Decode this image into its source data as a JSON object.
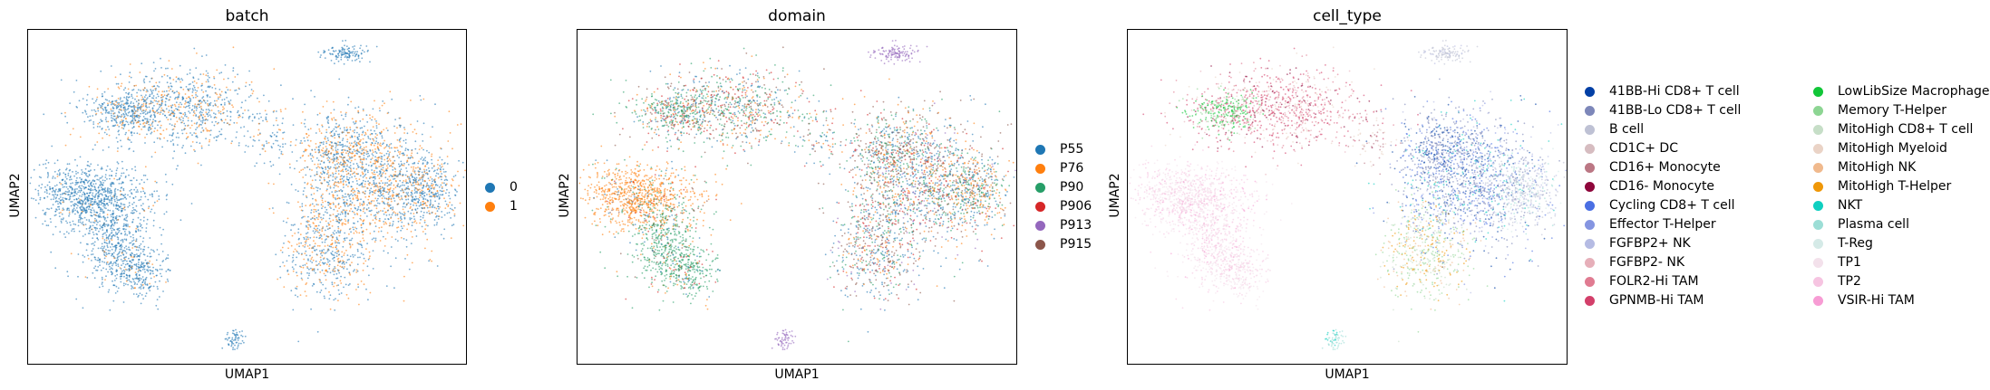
{
  "chart_data": [
    {
      "type": "scatter",
      "title": "batch",
      "xlabel": "UMAP1",
      "ylabel": "UMAP2",
      "grid": false,
      "legend_placement": "right",
      "series": [
        {
          "name": "0",
          "color": "#1f77b4"
        },
        {
          "name": "1",
          "color": "#ff7f0e"
        }
      ]
    },
    {
      "type": "scatter",
      "title": "domain",
      "xlabel": "UMAP1",
      "ylabel": "UMAP2",
      "grid": false,
      "legend_placement": "right",
      "series": [
        {
          "name": "P55",
          "color": "#1f77b4"
        },
        {
          "name": "P76",
          "color": "#ff7f0e"
        },
        {
          "name": "P90",
          "color": "#279e68"
        },
        {
          "name": "P906",
          "color": "#d62728"
        },
        {
          "name": "P913",
          "color": "#9467bd"
        },
        {
          "name": "P915",
          "color": "#8c564b"
        }
      ]
    },
    {
      "type": "scatter",
      "title": "cell_type",
      "xlabel": "UMAP1",
      "ylabel": "UMAP2",
      "grid": false,
      "legend_placement": "right, 2 columns",
      "series": [
        {
          "name": "41BB-Hi CD8+ T cell",
          "color": "#023fa5"
        },
        {
          "name": "41BB-Lo CD8+ T cell",
          "color": "#7d87b9"
        },
        {
          "name": "B cell",
          "color": "#bec1d4"
        },
        {
          "name": "CD1C+ DC",
          "color": "#d6bcc0"
        },
        {
          "name": "CD16+ Monocyte",
          "color": "#bb7784"
        },
        {
          "name": "CD16- Monocyte",
          "color": "#8e063b"
        },
        {
          "name": "Cycling CD8+ T cell",
          "color": "#4a6fe3"
        },
        {
          "name": "Effector T-Helper",
          "color": "#8595e1"
        },
        {
          "name": "FGFBP2+ NK",
          "color": "#b5bbe3"
        },
        {
          "name": "FGFBP2- NK",
          "color": "#e6afb9"
        },
        {
          "name": "FOLR2-Hi TAM",
          "color": "#e07b91"
        },
        {
          "name": "GPNMB-Hi TAM",
          "color": "#d33f6a"
        },
        {
          "name": "LowLibSize Macrophage",
          "color": "#11c638"
        },
        {
          "name": "Memory T-Helper",
          "color": "#8dd593"
        },
        {
          "name": "MitoHigh CD8+ T cell",
          "color": "#c6dec7"
        },
        {
          "name": "MitoHigh Myeloid",
          "color": "#ead3c6"
        },
        {
          "name": "MitoHigh NK",
          "color": "#f0b98d"
        },
        {
          "name": "MitoHigh T-Helper",
          "color": "#ef9708"
        },
        {
          "name": "NKT",
          "color": "#0fcfc0"
        },
        {
          "name": "Plasma cell",
          "color": "#9cded6"
        },
        {
          "name": "T-Reg",
          "color": "#d5eae7"
        },
        {
          "name": "TP1",
          "color": "#f3e1eb"
        },
        {
          "name": "TP2",
          "color": "#f6c4e1"
        },
        {
          "name": "VSIR-Hi TAM",
          "color": "#f79cd4"
        }
      ]
    }
  ]
}
